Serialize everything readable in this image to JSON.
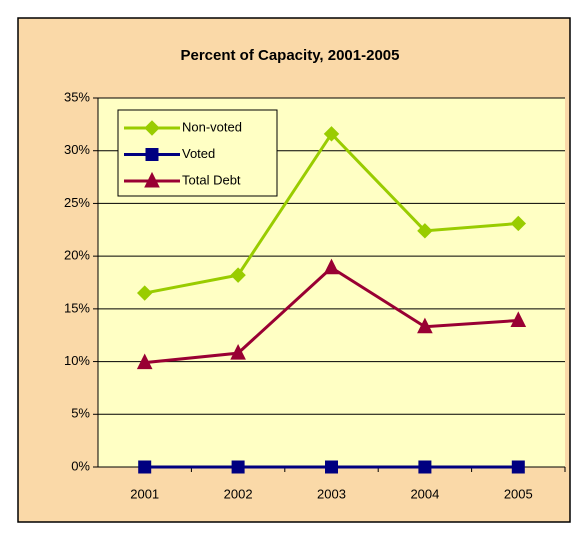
{
  "chart_data": {
    "type": "line",
    "title": "Percent of Capacity, 2001-2005",
    "categories": [
      "2001",
      "2002",
      "2003",
      "2004",
      "2005"
    ],
    "series": [
      {
        "name": "Non-voted",
        "color": "#99cc00",
        "marker": "diamond",
        "values": [
          16.5,
          18.2,
          31.6,
          22.4,
          23.1
        ]
      },
      {
        "name": "Voted",
        "color": "#000080",
        "marker": "square",
        "values": [
          0,
          0,
          0,
          0,
          0
        ]
      },
      {
        "name": "Total Debt",
        "color": "#990033",
        "marker": "triangle",
        "values": [
          9.9,
          10.8,
          18.9,
          13.3,
          13.9
        ]
      }
    ],
    "ylim": [
      0,
      35
    ],
    "yticks": [
      {
        "value": 0,
        "label": "0%"
      },
      {
        "value": 5,
        "label": "5%"
      },
      {
        "value": 10,
        "label": "10%"
      },
      {
        "value": 15,
        "label": "15%"
      },
      {
        "value": 20,
        "label": "20%"
      },
      {
        "value": 25,
        "label": "25%"
      },
      {
        "value": 30,
        "label": "30%"
      },
      {
        "value": 35,
        "label": "35%"
      }
    ],
    "grid": true,
    "legend": "top-left"
  }
}
